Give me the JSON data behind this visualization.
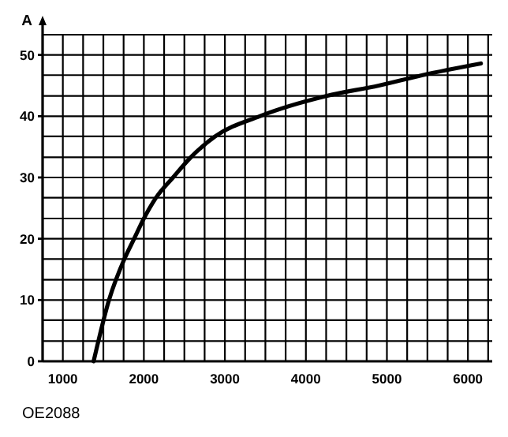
{
  "chart_data": {
    "type": "line",
    "ylabel": "A",
    "annotations": [
      "OE2088"
    ],
    "x": [
      1380,
      1570,
      1760,
      1880,
      2000,
      2150,
      2360,
      2580,
      2880,
      3430,
      4250,
      4900,
      5440,
      6160
    ],
    "series": [
      {
        "color": "#000000",
        "values": [
          0,
          10,
          16.7,
          20,
          23.3,
          26.7,
          30,
          33.3,
          36.7,
          40,
          43.3,
          45,
          46.7,
          48.6
        ]
      }
    ],
    "xlim": [
      750,
      6300
    ],
    "ylim": [
      0,
      53.3
    ],
    "xticks": [
      {
        "value": 750,
        "label": null
      },
      1000,
      {
        "value": 1250,
        "label": null
      },
      {
        "value": 1500,
        "label": null
      },
      {
        "value": 1750,
        "label": null
      },
      2000,
      {
        "value": 2250,
        "label": null
      },
      {
        "value": 2500,
        "label": null
      },
      {
        "value": 2750,
        "label": null
      },
      3000,
      {
        "value": 3250,
        "label": null
      },
      {
        "value": 3500,
        "label": null
      },
      {
        "value": 3750,
        "label": null
      },
      4000,
      {
        "value": 4250,
        "label": null
      },
      {
        "value": 4500,
        "label": null
      },
      {
        "value": 4750,
        "label": null
      },
      5000,
      {
        "value": 5250,
        "label": null
      },
      {
        "value": 5500,
        "label": null
      },
      {
        "value": 5750,
        "label": null
      },
      6000,
      {
        "value": 6250,
        "label": null
      }
    ],
    "yticks": [
      0,
      {
        "value": 3.3,
        "label": null
      },
      {
        "value": 6.7,
        "label": null
      },
      10,
      {
        "value": 13.3,
        "label": null
      },
      {
        "value": 16.7,
        "label": null
      },
      20,
      {
        "value": 23.3,
        "label": null
      },
      {
        "value": 26.7,
        "label": null
      },
      30,
      {
        "value": 33.3,
        "label": null
      },
      {
        "value": 36.7,
        "label": null
      },
      40,
      {
        "value": 43.3,
        "label": null
      },
      {
        "value": 46.7,
        "label": null
      },
      50,
      {
        "value": 53.3,
        "label": null
      }
    ],
    "grid": true,
    "marker": "none",
    "line_style": "solid"
  }
}
